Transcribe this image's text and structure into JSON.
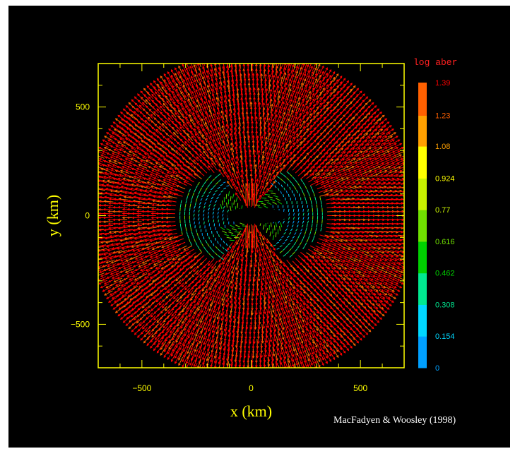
{
  "chart_data": {
    "type": "vector field with colorbar",
    "xlabel": "x (km)",
    "ylabel": "y (km)",
    "xlim": [
      -700,
      700
    ],
    "ylim": [
      -700,
      700
    ],
    "x_ticks": [
      -500,
      0,
      500
    ],
    "y_ticks": [
      500,
      0,
      -500
    ],
    "x_tick_labels": [
      "−500",
      "0",
      "500"
    ],
    "y_tick_labels": [
      "500",
      "0",
      "−500"
    ],
    "colorbar": {
      "title": "log aber",
      "levels": [
        0,
        0.154,
        0.308,
        0.462,
        0.616,
        0.77,
        0.924,
        1.08,
        1.23,
        1.39
      ],
      "level_labels": [
        "0",
        "0.154",
        "0.308",
        "0.462",
        "0.616",
        "0.77",
        "0.924",
        "1.08",
        "1.23",
        "1.39"
      ],
      "colors": [
        "#00a0ff",
        "#00d8ff",
        "#00e890",
        "#00d000",
        "#70e000",
        "#c8f000",
        "#ffff00",
        "#ffa000",
        "#ff6000",
        "#ff0000"
      ]
    },
    "credit": "MacFadyen & Woosley (1998)"
  },
  "colors": {
    "axis": "#ffff00",
    "tick_label": "#ffff00",
    "colorbar_title": "#ff2020",
    "background": "#000000"
  }
}
